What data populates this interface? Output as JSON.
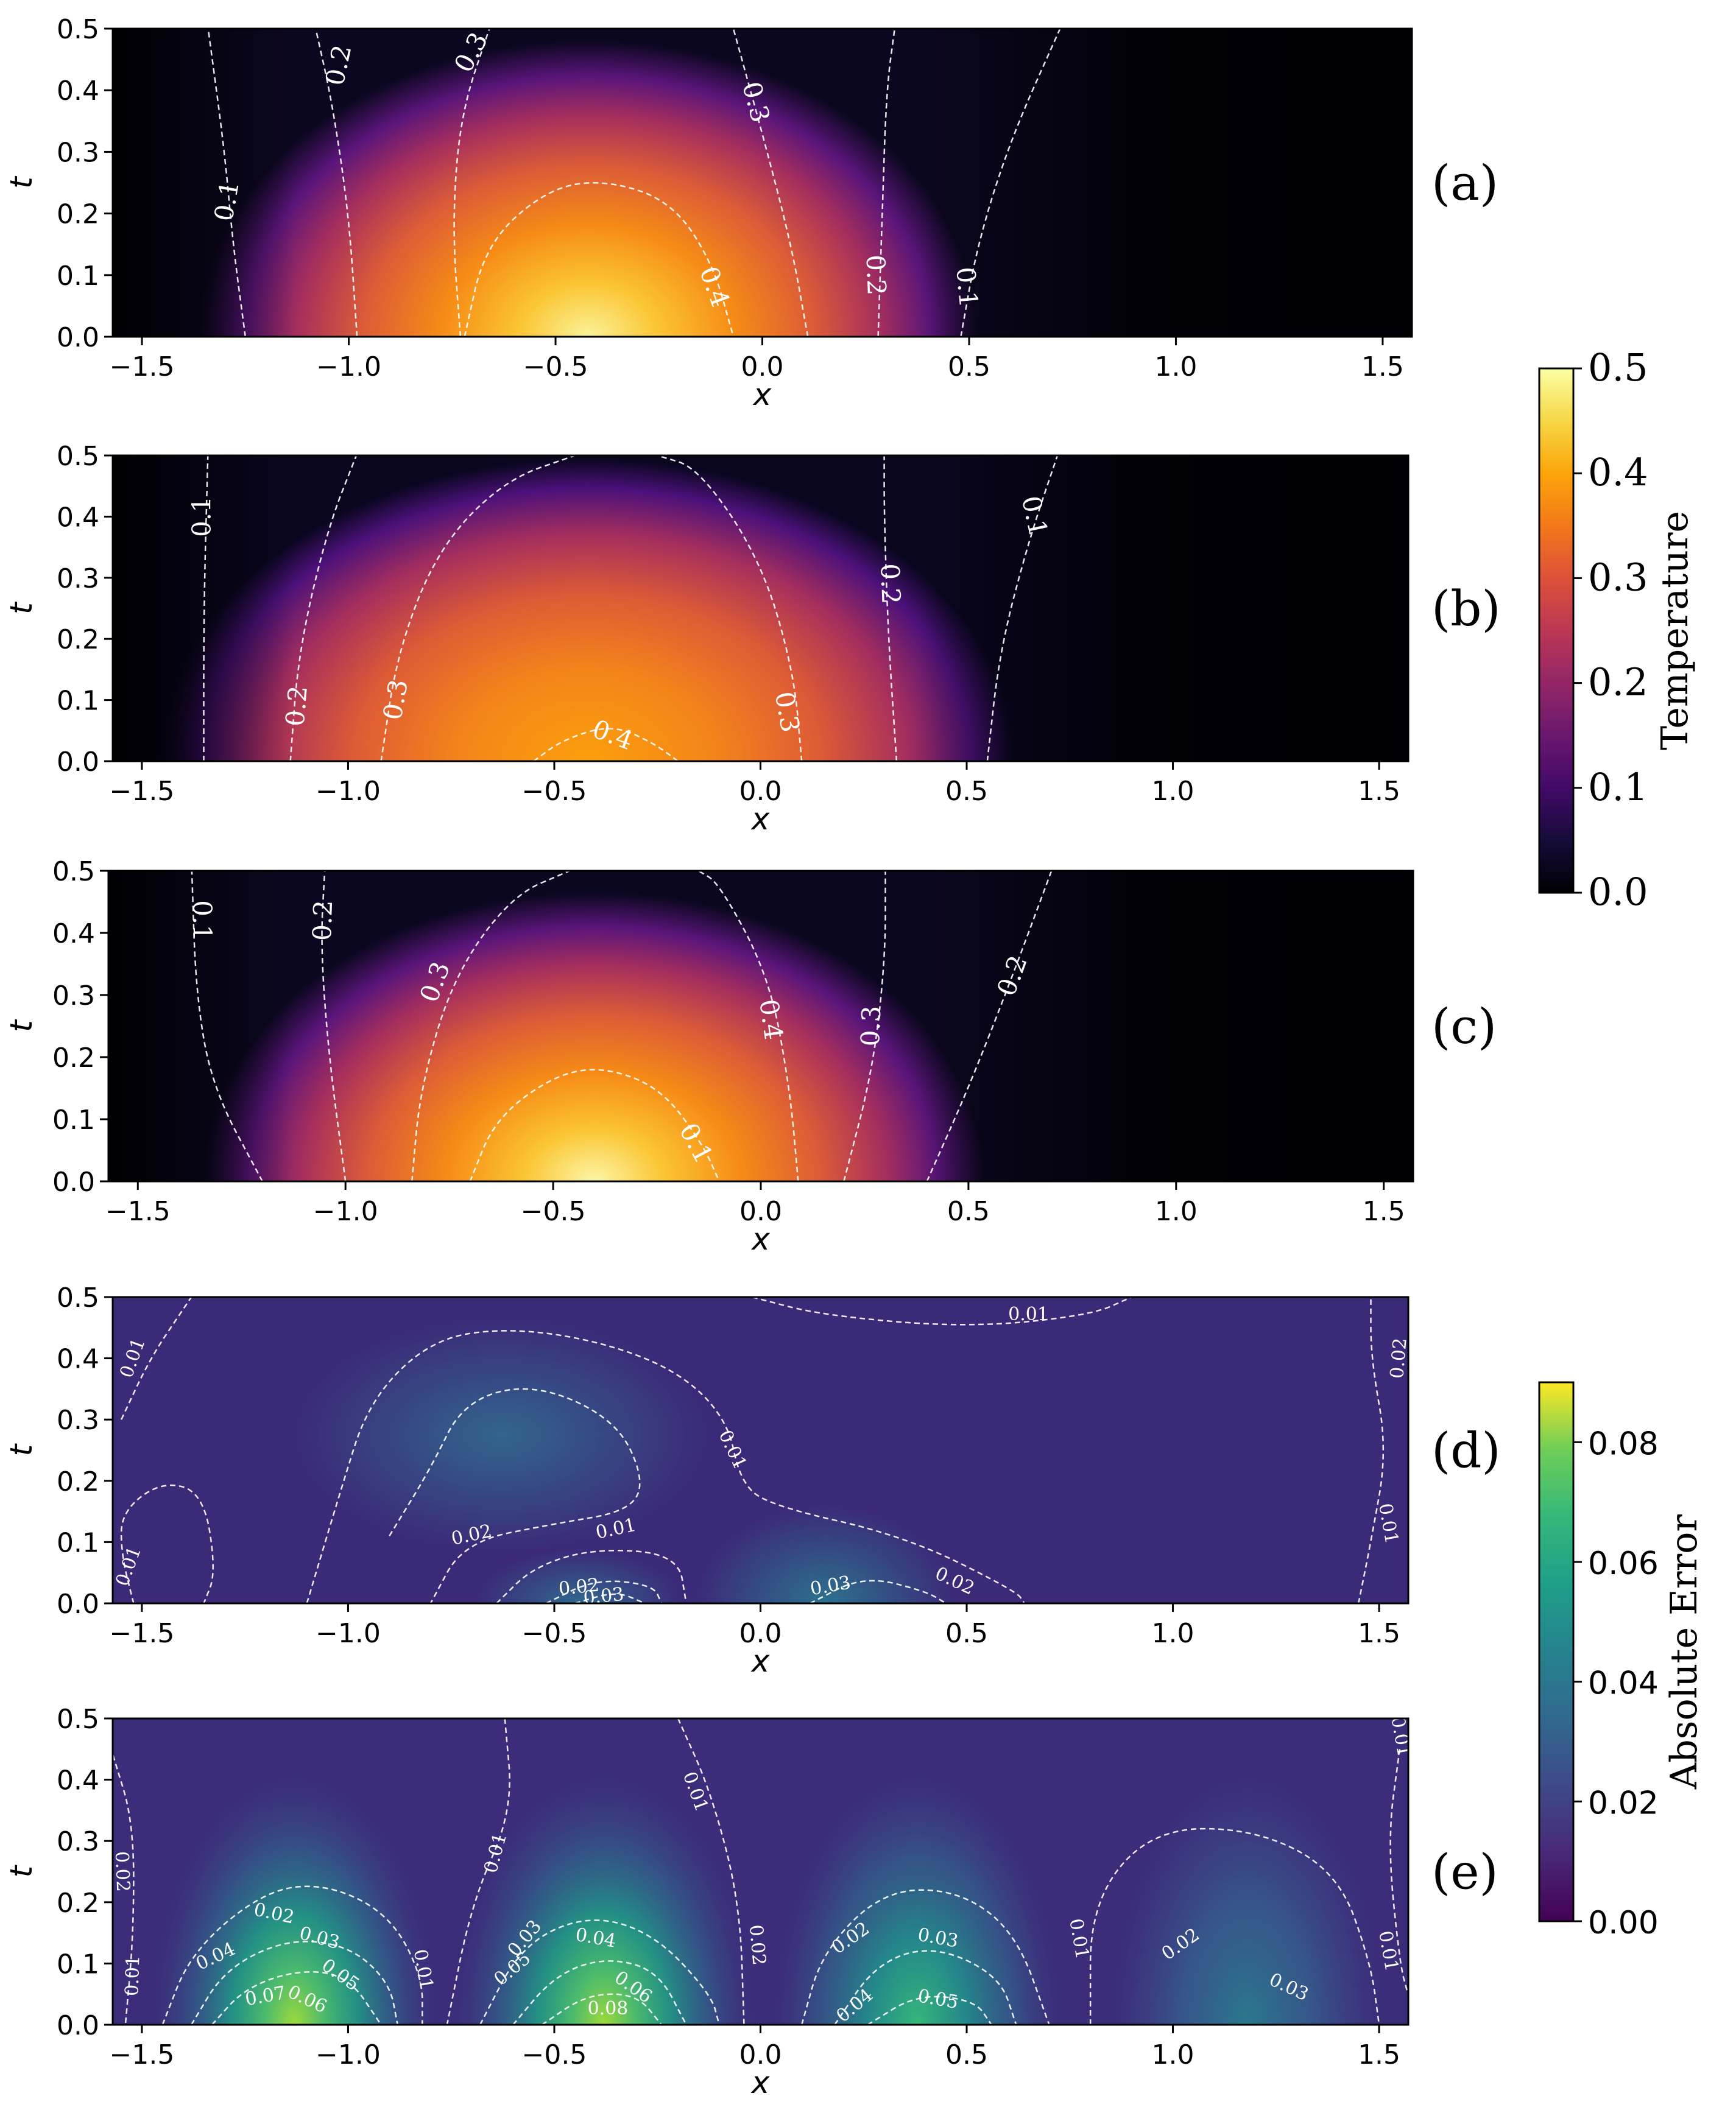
{
  "chart_data": [
    {
      "type": "heatmap",
      "panel_label": "(a)",
      "quantity": "Temperature",
      "xlabel": "x",
      "ylabel": "t",
      "xlim": [
        -1.5708,
        1.5708
      ],
      "ylim": [
        0.0,
        0.5
      ],
      "xticks": [
        "−1.5",
        "−1.0",
        "−0.5",
        "0.0",
        "0.5",
        "1.0",
        "1.5"
      ],
      "yticks": [
        "0.0",
        "0.1",
        "0.2",
        "0.3",
        "0.4",
        "0.5"
      ],
      "peak": {
        "x": -0.42,
        "t": 0.0,
        "value": 0.48
      },
      "contour_labels": [
        "0.1",
        "0.2",
        "0.3",
        "0.4",
        "0.3",
        "0.2",
        "0.1"
      ]
    },
    {
      "type": "heatmap",
      "panel_label": "(b)",
      "quantity": "Temperature",
      "xlabel": "x",
      "ylabel": "t",
      "xlim": [
        -1.5708,
        1.5708
      ],
      "ylim": [
        0.0,
        0.5
      ],
      "xticks": [
        "−1.5",
        "−1.0",
        "−0.5",
        "0.0",
        "0.5",
        "1.0",
        "1.5"
      ],
      "yticks": [
        "0.0",
        "0.1",
        "0.2",
        "0.3",
        "0.4",
        "0.5"
      ],
      "peak": {
        "x": -0.42,
        "t": 0.0,
        "value": 0.41
      },
      "contour_labels": [
        "0.1",
        "0.2",
        "0.3",
        "0.4",
        "0.3",
        "0.2",
        "0.1"
      ]
    },
    {
      "type": "heatmap",
      "panel_label": "(c)",
      "quantity": "Temperature",
      "xlabel": "x",
      "ylabel": "t",
      "xlim": [
        -1.5708,
        1.5708
      ],
      "ylim": [
        0.0,
        0.5
      ],
      "xticks": [
        "−1.5",
        "−1.0",
        "−0.5",
        "0.0",
        "0.5",
        "1.0",
        "1.5"
      ],
      "yticks": [
        "0.0",
        "0.1",
        "0.2",
        "0.3",
        "0.4",
        "0.5"
      ],
      "peak": {
        "x": -0.4,
        "t": 0.0,
        "value": 0.48
      },
      "contour_labels": [
        "0.1",
        "0.2",
        "0.3",
        "0.4",
        "0.3",
        "0.2",
        "0.1"
      ]
    },
    {
      "type": "heatmap",
      "panel_label": "(d)",
      "quantity": "Absolute Error",
      "xlabel": "x",
      "ylabel": "t",
      "xlim": [
        -1.5708,
        1.5708
      ],
      "ylim": [
        0.0,
        0.5
      ],
      "xticks": [
        "−1.5",
        "−1.0",
        "−0.5",
        "0.0",
        "0.5",
        "1.0",
        "1.5"
      ],
      "yticks": [
        "0.0",
        "0.1",
        "0.2",
        "0.3",
        "0.4",
        "0.5"
      ],
      "max_error": 0.035,
      "contour_labels": [
        "0.01",
        "0.01",
        "0.02",
        "0.01",
        "0.01",
        "0.02",
        "0.03",
        "0.03",
        "0.02",
        "0.01",
        "0.02",
        "0.01"
      ]
    },
    {
      "type": "heatmap",
      "panel_label": "(e)",
      "quantity": "Absolute Error",
      "xlabel": "x",
      "ylabel": "t",
      "xlim": [
        -1.5708,
        1.5708
      ],
      "ylim": [
        0.0,
        0.5
      ],
      "xticks": [
        "−1.5",
        "−1.0",
        "−0.5",
        "0.0",
        "0.5",
        "1.0",
        "1.5"
      ],
      "yticks": [
        "0.0",
        "0.1",
        "0.2",
        "0.3",
        "0.4",
        "0.5"
      ],
      "max_error": 0.085,
      "contour_labels": [
        "0.02",
        "0.01",
        "0.02",
        "0.03",
        "0.04",
        "0.05",
        "0.06",
        "0.07",
        "0.01",
        "0.01",
        "0.03",
        "0.04",
        "0.05",
        "0.06",
        "0.08",
        "0.02",
        "0.01",
        "0.02",
        "0.03",
        "0.04",
        "0.05",
        "0.01",
        "0.02",
        "0.03",
        "0.01",
        "0.01"
      ]
    }
  ],
  "colorbars": [
    {
      "label": "Temperature",
      "colormap": "inferno",
      "ticks": [
        "0.0",
        "0.1",
        "0.2",
        "0.3",
        "0.4",
        "0.5"
      ],
      "range": [
        0.0,
        0.5
      ]
    },
    {
      "label": "Absolute Error",
      "colormap": "viridis",
      "ticks": [
        "0.00",
        "0.02",
        "0.04",
        "0.06",
        "0.08"
      ],
      "range": [
        0.0,
        0.09
      ]
    }
  ]
}
